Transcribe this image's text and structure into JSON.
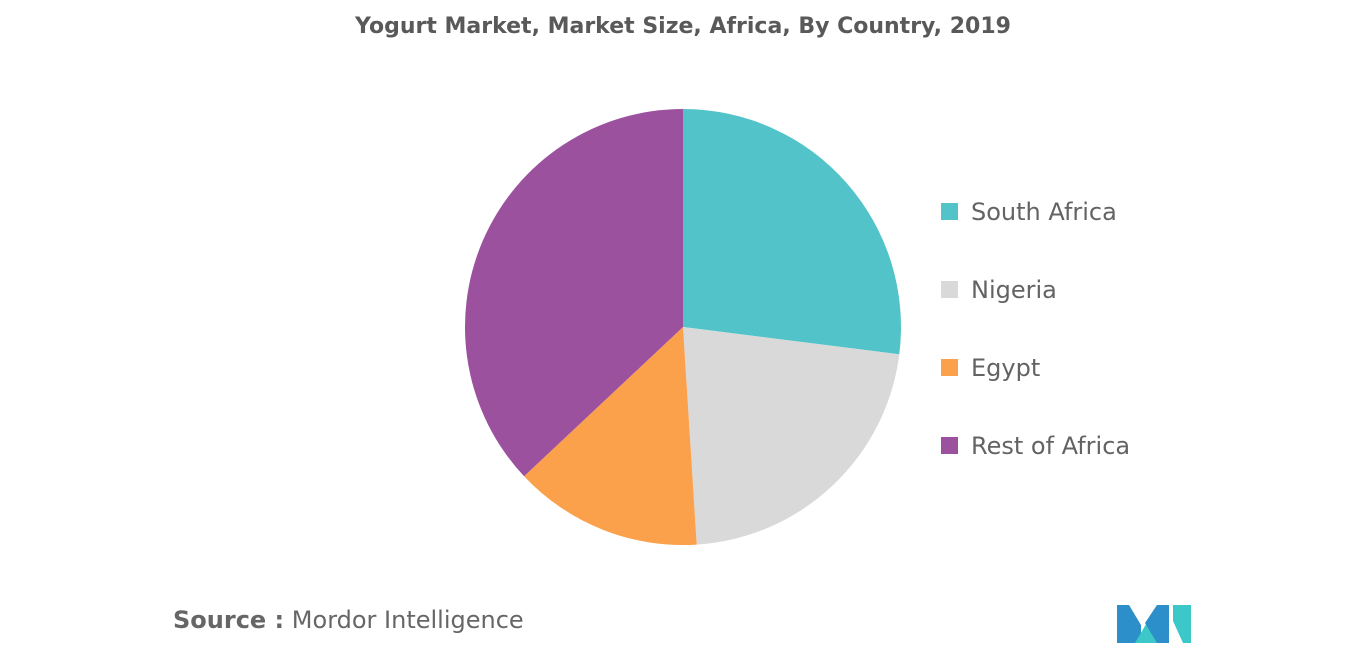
{
  "chart_data": {
    "type": "pie",
    "title": "Yogurt Market, Market Size, Africa, By Country, 2019",
    "slices": [
      {
        "label": "South Africa",
        "value": 27,
        "color": "#52c4c9"
      },
      {
        "label": "Nigeria",
        "value": 22,
        "color": "#d9d9d9"
      },
      {
        "label": "Egypt",
        "value": 14,
        "color": "#fba04b"
      },
      {
        "label": "Rest of Africa",
        "value": 37,
        "color": "#9b519d"
      }
    ],
    "start_angle_deg": 0,
    "direction": "clockwise",
    "legend_position": "right"
  },
  "source": {
    "prefix": "Source :",
    "text": "Mordor Intelligence"
  },
  "logo": {
    "icon": "mordor-intelligence-logo",
    "colors": [
      "#2c8fc9",
      "#3cc7c9"
    ]
  }
}
